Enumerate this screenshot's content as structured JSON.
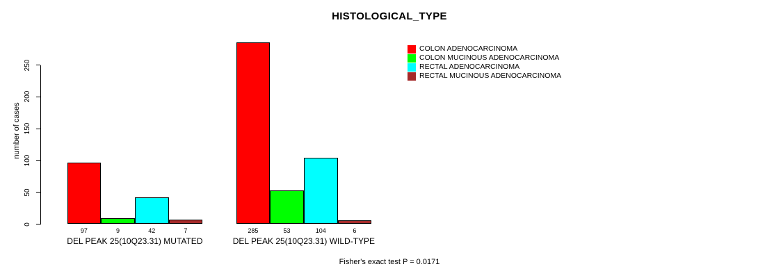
{
  "title": "HISTOLOGICAL_TYPE",
  "footer": "Fisher's exact test P = 0.0171",
  "chart_data": {
    "type": "bar",
    "title": "HISTOLOGICAL_TYPE",
    "xlabel": "",
    "ylabel": "number of cases",
    "ylim": [
      0,
      285
    ],
    "yticks": [
      0,
      50,
      100,
      150,
      200,
      250
    ],
    "grid": false,
    "legend_position": "top-right",
    "categories": [
      "DEL PEAK 25(10Q23.31) MUTATED",
      "DEL PEAK 25(10Q23.31) WILD-TYPE"
    ],
    "series": [
      {
        "name": "COLON ADENOCARCINOMA",
        "color": "#FF0000",
        "values": [
          97,
          285
        ]
      },
      {
        "name": "COLON MUCINOUS ADENOCARCINOMA",
        "color": "#00FF00",
        "values": [
          9,
          53
        ]
      },
      {
        "name": "RECTAL ADENOCARCINOMA",
        "color": "#00FFFF",
        "values": [
          42,
          104
        ]
      },
      {
        "name": "RECTAL MUCINOUS ADENOCARCINOMA",
        "color": "#A52A2A",
        "values": [
          7,
          6
        ]
      }
    ],
    "annotation": "Fisher's exact test P = 0.0171"
  }
}
